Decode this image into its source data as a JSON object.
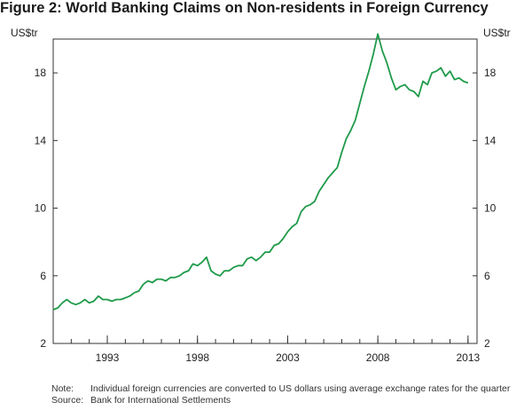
{
  "title": "Figure 2: World Banking Claims on Non-residents in Foreign Currency",
  "chart_data": {
    "type": "line",
    "ylabel_left": "US$tr",
    "ylabel_right": "US$tr",
    "ylim": [
      2,
      20
    ],
    "yticks": [
      2,
      6,
      10,
      14,
      18
    ],
    "xlim": [
      1990.0,
      2013.5
    ],
    "xtick_labels": [
      "1993",
      "1998",
      "2003",
      "2008",
      "2013"
    ],
    "xticks": [
      1993,
      1998,
      2003,
      2008,
      2013
    ],
    "minor_xticks": [
      1991,
      1992,
      1993,
      1994,
      1995,
      1996,
      1997,
      1998,
      1999,
      2000,
      2001,
      2002,
      2003,
      2004,
      2005,
      2006,
      2007,
      2008,
      2009,
      2010,
      2011,
      2012,
      2013
    ],
    "series": [
      {
        "name": "World banking claims on non-residents in foreign currency",
        "color": "#1f9a4a",
        "x": [
          1990.0,
          1990.25,
          1990.5,
          1990.75,
          1991.0,
          1991.25,
          1991.5,
          1991.75,
          1992.0,
          1992.25,
          1992.5,
          1992.75,
          1993.0,
          1993.25,
          1993.5,
          1993.75,
          1994.0,
          1994.25,
          1994.5,
          1994.75,
          1995.0,
          1995.25,
          1995.5,
          1995.75,
          1996.0,
          1996.25,
          1996.5,
          1996.75,
          1997.0,
          1997.25,
          1997.5,
          1997.75,
          1998.0,
          1998.25,
          1998.5,
          1998.75,
          1999.0,
          1999.25,
          1999.5,
          1999.75,
          2000.0,
          2000.25,
          2000.5,
          2000.75,
          2001.0,
          2001.25,
          2001.5,
          2001.75,
          2002.0,
          2002.25,
          2002.5,
          2002.75,
          2003.0,
          2003.25,
          2003.5,
          2003.75,
          2004.0,
          2004.25,
          2004.5,
          2004.75,
          2005.0,
          2005.25,
          2005.5,
          2005.75,
          2006.0,
          2006.25,
          2006.5,
          2006.75,
          2007.0,
          2007.25,
          2007.5,
          2007.75,
          2008.0,
          2008.25,
          2008.5,
          2008.75,
          2009.0,
          2009.25,
          2009.5,
          2009.75,
          2010.0,
          2010.25,
          2010.5,
          2010.75,
          2011.0,
          2011.25,
          2011.5,
          2011.75,
          2012.0,
          2012.25,
          2012.5,
          2012.75,
          2013.0
        ],
        "values": [
          4.0,
          4.1,
          4.4,
          4.6,
          4.4,
          4.3,
          4.4,
          4.6,
          4.4,
          4.5,
          4.8,
          4.6,
          4.6,
          4.5,
          4.6,
          4.6,
          4.7,
          4.8,
          5.0,
          5.1,
          5.5,
          5.7,
          5.6,
          5.8,
          5.8,
          5.7,
          5.9,
          5.9,
          6.0,
          6.2,
          6.3,
          6.7,
          6.6,
          6.8,
          7.1,
          6.3,
          6.1,
          6.0,
          6.3,
          6.3,
          6.5,
          6.6,
          6.6,
          7.0,
          7.1,
          6.9,
          7.1,
          7.4,
          7.4,
          7.8,
          7.9,
          8.2,
          8.6,
          8.9,
          9.1,
          9.8,
          10.1,
          10.2,
          10.4,
          11.0,
          11.4,
          11.8,
          12.1,
          12.4,
          13.3,
          14.1,
          14.6,
          15.2,
          16.2,
          17.2,
          18.1,
          19.1,
          20.3,
          19.3,
          18.6,
          17.7,
          17.0,
          17.2,
          17.3,
          17.0,
          16.9,
          16.6,
          17.5,
          17.3,
          18.0,
          18.1,
          18.3,
          17.8,
          18.1,
          17.6,
          17.7,
          17.5,
          17.4
        ]
      }
    ]
  },
  "notes": {
    "note_label": "Note:",
    "note_text": "Individual foreign currencies are converted to US dollars using average exchange rates for the quarter",
    "source_label": "Source:",
    "source_text": "Bank for International Settlements"
  }
}
